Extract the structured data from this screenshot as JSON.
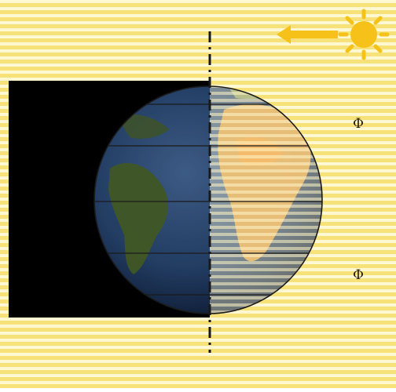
{
  "labels": {
    "latitude_upper": "Φ",
    "latitude_lower": "Φ"
  },
  "colors": {
    "sunlight_bg": "#f7e27a",
    "stripe_light": "#fff8d2",
    "night_side": "#000000",
    "sun": "#f6c21a",
    "ocean_dark": "#2a4a78",
    "land_dark": "#4f6a2c",
    "land_light_desert": "#e2a24a",
    "axis": "#1a1a1a"
  },
  "icons": {
    "sun": "sun-icon",
    "arrow": "arrow-left-icon"
  }
}
